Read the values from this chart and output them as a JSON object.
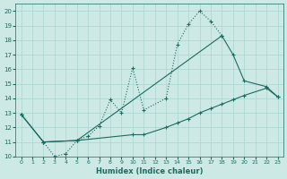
{
  "xlabel": "Humidex (Indice chaleur)",
  "xlim": [
    -0.5,
    23.5
  ],
  "ylim": [
    10,
    20.5
  ],
  "yticks": [
    10,
    11,
    12,
    13,
    14,
    15,
    16,
    17,
    18,
    19,
    20
  ],
  "xticks": [
    0,
    1,
    2,
    3,
    4,
    5,
    6,
    7,
    8,
    9,
    10,
    11,
    12,
    13,
    14,
    15,
    16,
    17,
    18,
    19,
    20,
    21,
    22,
    23
  ],
  "bg_color": "#cce9e5",
  "grid_color": "#aad4cf",
  "line_color": "#1a6b60",
  "line1": {
    "x": [
      0,
      2,
      3,
      4,
      5,
      6,
      7,
      8,
      9,
      10,
      11,
      13,
      14,
      15,
      16,
      17,
      18
    ],
    "y": [
      12.9,
      11.0,
      10.0,
      10.2,
      11.1,
      11.4,
      12.1,
      13.9,
      13.0,
      16.1,
      13.2,
      14.0,
      17.7,
      19.1,
      20.0,
      19.3,
      18.3
    ]
  },
  "line2": {
    "x": [
      0,
      2,
      5,
      18,
      19,
      20,
      22,
      23
    ],
    "y": [
      12.9,
      11.0,
      11.1,
      18.3,
      17.0,
      15.2,
      14.8,
      14.1
    ]
  },
  "line3": {
    "x": [
      0,
      2,
      5,
      10,
      11,
      13,
      14,
      15,
      16,
      17,
      18,
      19,
      20,
      22,
      23
    ],
    "y": [
      12.9,
      11.0,
      11.1,
      11.5,
      11.5,
      12.0,
      12.3,
      12.6,
      13.0,
      13.3,
      13.6,
      13.9,
      14.2,
      14.7,
      14.1
    ]
  }
}
